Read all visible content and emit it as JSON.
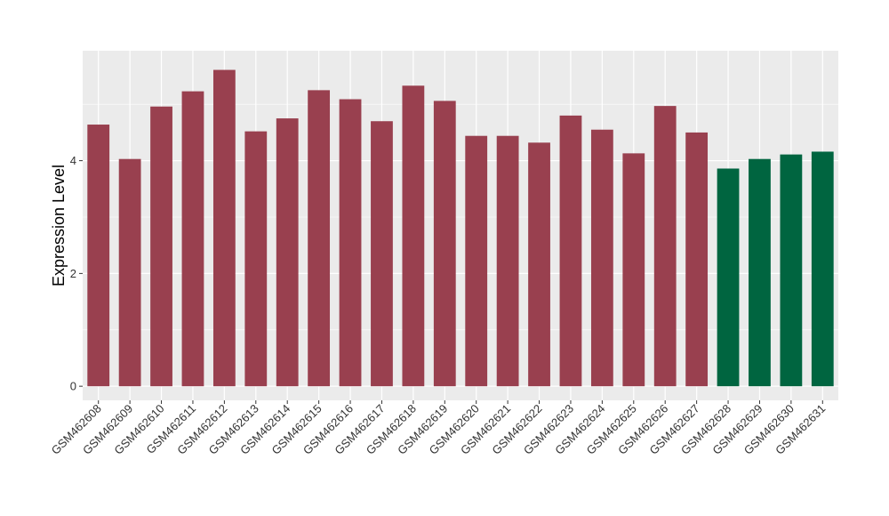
{
  "chart_data": {
    "type": "bar",
    "title": "",
    "xlabel": "",
    "ylabel": "Expression Level",
    "ylim": [
      -0.25,
      5.95
    ],
    "yticks": [
      0,
      2,
      4
    ],
    "grid": true,
    "legend": "none",
    "categories": [
      "GSM462608",
      "GSM462609",
      "GSM462610",
      "GSM462611",
      "GSM462612",
      "GSM462613",
      "GSM462614",
      "GSM462615",
      "GSM462616",
      "GSM462617",
      "GSM462618",
      "GSM462619",
      "GSM462620",
      "GSM462621",
      "GSM462622",
      "GSM462623",
      "GSM462624",
      "GSM462625",
      "GSM462626",
      "GSM462627",
      "GSM462628",
      "GSM462629",
      "GSM462630",
      "GSM462631"
    ],
    "values": [
      4.64,
      4.03,
      4.96,
      5.23,
      5.61,
      4.52,
      4.75,
      5.25,
      5.09,
      4.7,
      5.33,
      5.06,
      4.44,
      4.44,
      4.32,
      4.8,
      4.55,
      4.13,
      4.97,
      4.5,
      3.86,
      4.03,
      4.11,
      4.16
    ],
    "groups": [
      1,
      1,
      1,
      1,
      1,
      1,
      1,
      1,
      1,
      1,
      1,
      1,
      1,
      1,
      1,
      1,
      1,
      1,
      1,
      1,
      2,
      2,
      2,
      2
    ],
    "group_colors": {
      "1": "#99404f",
      "2": "#006540"
    },
    "panel_background": "#ebebeb",
    "grid_color": "#ffffff"
  }
}
